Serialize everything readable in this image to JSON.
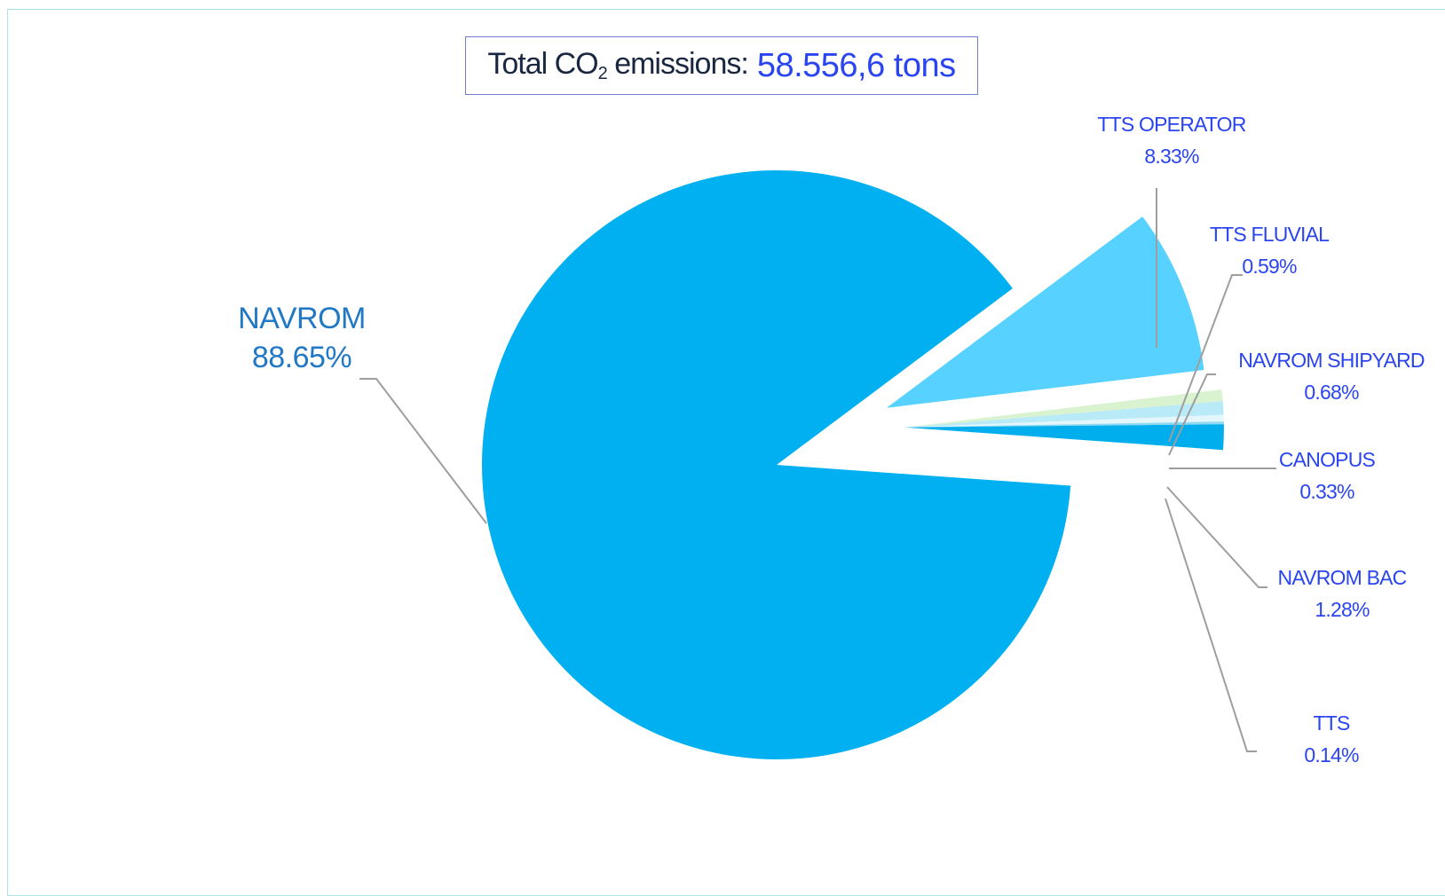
{
  "title": {
    "prefix": "Total CO",
    "subscript": "2",
    "suffix": " emissions:",
    "value": "58.556,6 tons"
  },
  "chart_data": {
    "type": "pie",
    "title": "Total CO2 emissions: 58.556,6 tons",
    "slices": [
      {
        "name": "NAVROM",
        "percent_label": "88.65%",
        "value": 88.65,
        "color": "#00b0f0",
        "exploded": false
      },
      {
        "name": "TTS OPERATOR",
        "percent_label": "8.33%",
        "value": 8.33,
        "color": "#57d1ff",
        "exploded": true
      },
      {
        "name": "TTS FLUVIAL",
        "percent_label": "0.59%",
        "value": 0.59,
        "color": "#d9f2d0",
        "exploded": true
      },
      {
        "name": "NAVROM SHIPYARD",
        "percent_label": "0.68%",
        "value": 0.68,
        "color": "#b9eaf7",
        "exploded": true
      },
      {
        "name": "CANOPUS",
        "percent_label": "0.33%",
        "value": 0.33,
        "color": "#e3f6fb",
        "exploded": true
      },
      {
        "name": "TTS",
        "percent_label": "0.14%",
        "value": 0.14,
        "color": "#8fd9f2",
        "exploded": true
      },
      {
        "name": "NAVROM BAC",
        "percent_label": "1.28%",
        "value": 1.28,
        "color": "#00aeee",
        "exploded": true
      }
    ],
    "leader_line_color": "#9e9e9e"
  }
}
